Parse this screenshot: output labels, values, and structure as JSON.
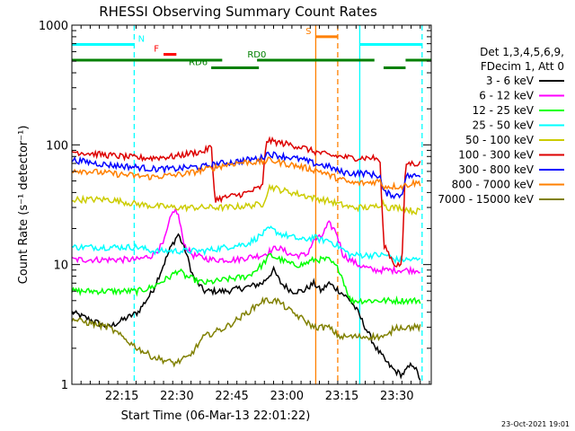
{
  "chart_data": {
    "type": "line",
    "title": "RHESSI Observing Summary Count Rates",
    "xlabel": "Start Time (06-Mar-13 22:01:22)",
    "ylabel": "Count Rate (s⁻¹ detector⁻¹)",
    "ylim": [
      1,
      1000
    ],
    "yscale": "log",
    "xlim_minutes_after_start": [
      0,
      98
    ],
    "grid": false,
    "legend_position": "right",
    "x_tick_labels": [
      "22:15",
      "22:30",
      "22:45",
      "23:00",
      "23:15",
      "23:30"
    ],
    "y_tick_labels": [
      "1",
      "10",
      "100",
      "1000"
    ],
    "legend_header": [
      "Det 1,3,4,5,6,9,",
      "FDecim 1, Att 0"
    ],
    "footer_date": "23-Oct-2021 19:01",
    "series": [
      {
        "name": "3 - 6 keV",
        "color": "#000000",
        "points": [
          [
            0,
            4
          ],
          [
            10,
            3
          ],
          [
            18,
            4
          ],
          [
            22,
            6
          ],
          [
            27,
            14
          ],
          [
            29,
            18
          ],
          [
            31,
            13
          ],
          [
            33,
            8
          ],
          [
            36,
            6
          ],
          [
            42,
            6
          ],
          [
            48,
            6.5
          ],
          [
            52,
            7
          ],
          [
            55,
            9
          ],
          [
            57,
            7
          ],
          [
            60,
            6
          ],
          [
            63,
            6
          ],
          [
            66,
            7
          ],
          [
            68,
            6
          ],
          [
            70,
            7
          ],
          [
            73,
            6
          ],
          [
            76,
            5
          ],
          [
            78,
            4
          ],
          [
            80,
            3
          ],
          [
            83,
            2
          ],
          [
            86,
            1.5
          ],
          [
            88,
            1.3
          ],
          [
            90,
            1.2
          ],
          [
            93,
            1.5
          ],
          [
            95,
            1.1
          ]
        ]
      },
      {
        "name": "6 - 12 keV",
        "color": "#ff00ff",
        "points": [
          [
            0,
            11
          ],
          [
            10,
            11
          ],
          [
            18,
            11
          ],
          [
            22,
            12
          ],
          [
            25,
            15
          ],
          [
            27,
            25
          ],
          [
            28,
            29
          ],
          [
            29,
            26
          ],
          [
            30,
            18
          ],
          [
            31,
            14
          ],
          [
            33,
            12
          ],
          [
            38,
            11
          ],
          [
            45,
            11
          ],
          [
            48,
            11.5
          ],
          [
            52,
            12
          ],
          [
            56,
            14
          ],
          [
            58,
            13
          ],
          [
            60,
            12
          ],
          [
            64,
            12
          ],
          [
            66,
            16
          ],
          [
            68,
            17
          ],
          [
            70,
            22
          ],
          [
            72,
            19
          ],
          [
            74,
            12
          ],
          [
            78,
            10
          ],
          [
            82,
            9
          ],
          [
            86,
            9
          ],
          [
            88,
            9
          ],
          [
            90,
            9
          ],
          [
            93,
            9
          ],
          [
            95,
            9
          ]
        ]
      },
      {
        "name": "12 - 25 keV",
        "color": "#00ff00",
        "points": [
          [
            0,
            6
          ],
          [
            10,
            6
          ],
          [
            18,
            6
          ],
          [
            22,
            6.5
          ],
          [
            27,
            8
          ],
          [
            29,
            9
          ],
          [
            31,
            8
          ],
          [
            36,
            7
          ],
          [
            42,
            7.5
          ],
          [
            48,
            8
          ],
          [
            52,
            10
          ],
          [
            54,
            12
          ],
          [
            57,
            11
          ],
          [
            60,
            10
          ],
          [
            63,
            10
          ],
          [
            66,
            11
          ],
          [
            68,
            11
          ],
          [
            70,
            11
          ],
          [
            73,
            9
          ],
          [
            76,
            5
          ],
          [
            82,
            5
          ],
          [
            86,
            5
          ],
          [
            88,
            5
          ],
          [
            90,
            5
          ],
          [
            93,
            5
          ],
          [
            95,
            5
          ]
        ]
      },
      {
        "name": "25 - 50 keV",
        "color": "#00ffff",
        "points": [
          [
            0,
            14
          ],
          [
            10,
            14
          ],
          [
            18,
            14
          ],
          [
            22,
            13
          ],
          [
            28,
            13
          ],
          [
            32,
            13
          ],
          [
            36,
            13
          ],
          [
            42,
            14
          ],
          [
            48,
            15
          ],
          [
            52,
            18
          ],
          [
            54,
            20
          ],
          [
            57,
            18
          ],
          [
            60,
            17
          ],
          [
            63,
            16
          ],
          [
            66,
            17
          ],
          [
            68,
            16
          ],
          [
            70,
            16
          ],
          [
            73,
            14
          ],
          [
            76,
            12
          ],
          [
            82,
            12
          ],
          [
            86,
            12
          ],
          [
            88,
            11
          ],
          [
            90,
            11
          ],
          [
            93,
            11
          ],
          [
            95,
            11
          ]
        ]
      },
      {
        "name": "50 - 100 keV",
        "color": "#cccc00",
        "points": [
          [
            0,
            35
          ],
          [
            10,
            35
          ],
          [
            18,
            32
          ],
          [
            22,
            31
          ],
          [
            28,
            30
          ],
          [
            32,
            30
          ],
          [
            36,
            30
          ],
          [
            42,
            30
          ],
          [
            48,
            31
          ],
          [
            52,
            32
          ],
          [
            54,
            45
          ],
          [
            57,
            42
          ],
          [
            60,
            40
          ],
          [
            63,
            38
          ],
          [
            66,
            36
          ],
          [
            68,
            35
          ],
          [
            70,
            34
          ],
          [
            73,
            32
          ],
          [
            76,
            30
          ],
          [
            82,
            30
          ],
          [
            85,
            33
          ],
          [
            86,
            30
          ],
          [
            90,
            30
          ],
          [
            93,
            28
          ],
          [
            95,
            28
          ]
        ]
      },
      {
        "name": "100 - 300 keV",
        "color": "#dd0000",
        "points": [
          [
            0,
            88
          ],
          [
            10,
            82
          ],
          [
            18,
            78
          ],
          [
            22,
            78
          ],
          [
            28,
            80
          ],
          [
            32,
            85
          ],
          [
            36,
            88
          ],
          [
            38,
            98
          ],
          [
            39,
            35
          ],
          [
            45,
            38
          ],
          [
            48,
            40
          ],
          [
            52,
            45
          ],
          [
            53,
            110
          ],
          [
            56,
            105
          ],
          [
            60,
            100
          ],
          [
            63,
            95
          ],
          [
            66,
            88
          ],
          [
            68,
            85
          ],
          [
            70,
            82
          ],
          [
            73,
            80
          ],
          [
            76,
            78
          ],
          [
            82,
            78
          ],
          [
            84,
            75
          ],
          [
            85,
            15
          ],
          [
            88,
            10
          ],
          [
            90,
            10
          ],
          [
            91,
            70
          ],
          [
            93,
            70
          ],
          [
            95,
            70
          ]
        ]
      },
      {
        "name": "300 - 800 keV",
        "color": "#0000ff",
        "points": [
          [
            0,
            75
          ],
          [
            10,
            68
          ],
          [
            18,
            65
          ],
          [
            22,
            63
          ],
          [
            28,
            63
          ],
          [
            32,
            65
          ],
          [
            36,
            66
          ],
          [
            40,
            70
          ],
          [
            44,
            72
          ],
          [
            48,
            75
          ],
          [
            52,
            78
          ],
          [
            53,
            85
          ],
          [
            56,
            82
          ],
          [
            60,
            78
          ],
          [
            63,
            75
          ],
          [
            66,
            70
          ],
          [
            68,
            68
          ],
          [
            70,
            66
          ],
          [
            73,
            60
          ],
          [
            76,
            58
          ],
          [
            80,
            58
          ],
          [
            84,
            55
          ],
          [
            85,
            40
          ],
          [
            88,
            38
          ],
          [
            90,
            38
          ],
          [
            91,
            55
          ],
          [
            93,
            55
          ],
          [
            95,
            55
          ]
        ]
      },
      {
        "name": "800 - 7000 keV",
        "color": "#ff8000",
        "points": [
          [
            0,
            62
          ],
          [
            10,
            58
          ],
          [
            18,
            55
          ],
          [
            22,
            54
          ],
          [
            28,
            56
          ],
          [
            32,
            58
          ],
          [
            36,
            62
          ],
          [
            40,
            66
          ],
          [
            44,
            70
          ],
          [
            48,
            72
          ],
          [
            52,
            72
          ],
          [
            54,
            75
          ],
          [
            56,
            72
          ],
          [
            60,
            68
          ],
          [
            63,
            65
          ],
          [
            66,
            62
          ],
          [
            68,
            60
          ],
          [
            70,
            56
          ],
          [
            73,
            52
          ],
          [
            76,
            48
          ],
          [
            80,
            48
          ],
          [
            84,
            50
          ],
          [
            85,
            45
          ],
          [
            88,
            45
          ],
          [
            90,
            45
          ],
          [
            93,
            48
          ],
          [
            95,
            48
          ]
        ]
      },
      {
        "name": "7000 - 15000 keV",
        "color": "#808000",
        "points": [
          [
            0,
            3.5
          ],
          [
            10,
            3
          ],
          [
            18,
            2
          ],
          [
            22,
            1.7
          ],
          [
            28,
            1.5
          ],
          [
            32,
            1.7
          ],
          [
            36,
            2.5
          ],
          [
            42,
            3
          ],
          [
            48,
            4
          ],
          [
            52,
            5
          ],
          [
            56,
            5
          ],
          [
            60,
            4
          ],
          [
            63,
            3.5
          ],
          [
            66,
            3
          ],
          [
            68,
            3
          ],
          [
            70,
            3
          ],
          [
            73,
            2.5
          ],
          [
            76,
            2.5
          ],
          [
            82,
            2.5
          ],
          [
            86,
            2.5
          ],
          [
            88,
            3
          ],
          [
            90,
            3
          ],
          [
            93,
            3
          ],
          [
            95,
            3
          ]
        ]
      }
    ],
    "annotations": [
      {
        "label": "N",
        "color": "#00ffff",
        "segments": [
          [
            0,
            17
          ],
          [
            78.5,
            95.5
          ]
        ],
        "level": 690
      },
      {
        "label": "F",
        "color": "#ff0000",
        "segments": [
          [
            25,
            28.5
          ]
        ],
        "level": 570
      },
      {
        "label": "S",
        "color": "#ff8000",
        "segments": [
          [
            66.5,
            72.5
          ]
        ],
        "level": 800
      },
      {
        "label": "RD0",
        "color": "#008000",
        "segments": [
          [
            0,
            41
          ],
          [
            50.5,
            82.5
          ],
          [
            91,
            98
          ]
        ],
        "level": 510
      },
      {
        "label": "RD6",
        "color": "#008000",
        "segments": [
          [
            38,
            51
          ],
          [
            85,
            91
          ]
        ],
        "level": 440
      }
    ],
    "vertical_markers": [
      {
        "color": "#00ffff",
        "style": "dashed",
        "x": 17
      },
      {
        "color": "#00ffff",
        "style": "solid",
        "x": 78.5
      },
      {
        "color": "#00ffff",
        "style": "dashed",
        "x": 95.5
      },
      {
        "color": "#ff8000",
        "style": "solid",
        "x": 66.5
      },
      {
        "color": "#ff8000",
        "style": "dashed",
        "x": 72.5
      }
    ]
  }
}
